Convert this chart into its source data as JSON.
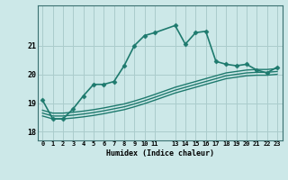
{
  "xlabel": "Humidex (Indice chaleur)",
  "bg_color": "#cce8e8",
  "grid_color": "#aacccc",
  "line_color": "#1e7a6e",
  "xlim": [
    -0.5,
    23.5
  ],
  "ylim": [
    17.7,
    22.4
  ],
  "yticks": [
    18,
    19,
    20,
    21
  ],
  "xtick_positions": [
    0,
    1,
    2,
    3,
    4,
    5,
    6,
    7,
    8,
    9,
    10,
    11,
    13,
    14,
    15,
    16,
    17,
    18,
    19,
    20,
    21,
    22,
    23
  ],
  "xtick_labels": [
    "0",
    "1",
    "2",
    "3",
    "4",
    "5",
    "6",
    "7",
    "8",
    "9",
    "10",
    "11",
    "13",
    "14",
    "15",
    "16",
    "17",
    "18",
    "19",
    "20",
    "21",
    "22",
    "23"
  ],
  "series": [
    {
      "x": [
        0,
        1,
        2,
        3,
        4,
        5,
        6,
        7,
        8,
        9,
        10,
        11,
        13,
        14,
        15,
        16,
        17,
        18,
        19,
        20,
        21,
        22,
        23
      ],
      "y": [
        19.1,
        18.45,
        18.45,
        18.8,
        19.25,
        19.65,
        19.65,
        19.75,
        20.3,
        21.0,
        21.35,
        21.45,
        21.7,
        21.05,
        21.45,
        21.5,
        20.45,
        20.35,
        20.3,
        20.35,
        20.15,
        20.05,
        20.25
      ],
      "marker": "D",
      "markersize": 2.5,
      "linewidth": 1.2,
      "zorder": 5
    },
    {
      "x": [
        0,
        1,
        2,
        3,
        4,
        5,
        6,
        7,
        8,
        9,
        10,
        11,
        13,
        14,
        15,
        16,
        17,
        18,
        19,
        20,
        21,
        22,
        23
      ],
      "y": [
        18.75,
        18.65,
        18.65,
        18.68,
        18.72,
        18.77,
        18.83,
        18.9,
        18.97,
        19.07,
        19.18,
        19.3,
        19.55,
        19.65,
        19.75,
        19.85,
        19.95,
        20.05,
        20.1,
        20.15,
        20.17,
        20.17,
        20.2
      ],
      "marker": null,
      "linewidth": 1.0,
      "zorder": 3
    },
    {
      "x": [
        0,
        1,
        2,
        3,
        4,
        5,
        6,
        7,
        8,
        9,
        10,
        11,
        13,
        14,
        15,
        16,
        17,
        18,
        19,
        20,
        21,
        22,
        23
      ],
      "y": [
        18.65,
        18.55,
        18.55,
        18.58,
        18.62,
        18.67,
        18.73,
        18.8,
        18.87,
        18.97,
        19.08,
        19.2,
        19.45,
        19.55,
        19.65,
        19.75,
        19.85,
        19.95,
        20.0,
        20.05,
        20.07,
        20.07,
        20.1
      ],
      "marker": null,
      "linewidth": 1.0,
      "zorder": 3
    },
    {
      "x": [
        0,
        1,
        2,
        3,
        4,
        5,
        6,
        7,
        8,
        9,
        10,
        11,
        13,
        14,
        15,
        16,
        17,
        18,
        19,
        20,
        21,
        22,
        23
      ],
      "y": [
        18.55,
        18.45,
        18.45,
        18.48,
        18.52,
        18.57,
        18.63,
        18.7,
        18.77,
        18.87,
        18.98,
        19.1,
        19.35,
        19.45,
        19.55,
        19.65,
        19.75,
        19.85,
        19.9,
        19.95,
        19.97,
        19.97,
        20.0
      ],
      "marker": null,
      "linewidth": 1.0,
      "zorder": 3
    }
  ]
}
